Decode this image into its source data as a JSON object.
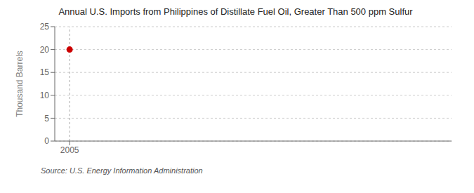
{
  "chart_data": {
    "type": "scatter",
    "title": "Annual U.S. Imports from Philippines of Distillate Fuel Oil, Greater Than 500 ppm Sulfur",
    "y_label": "Thousand Barrels",
    "annotations": [
      "Source: U.S. Energy Information Administration"
    ],
    "x": [
      2005
    ],
    "values": [
      20
    ],
    "color": "#cc0000",
    "marker": "circle",
    "xlim": [
      2004.3,
      2023
    ],
    "xticks": [
      2005
    ],
    "ylim": [
      0,
      25
    ],
    "yticks": [
      0,
      5,
      10,
      15,
      20,
      25
    ],
    "grid": "y",
    "vlines": [
      2005
    ]
  }
}
